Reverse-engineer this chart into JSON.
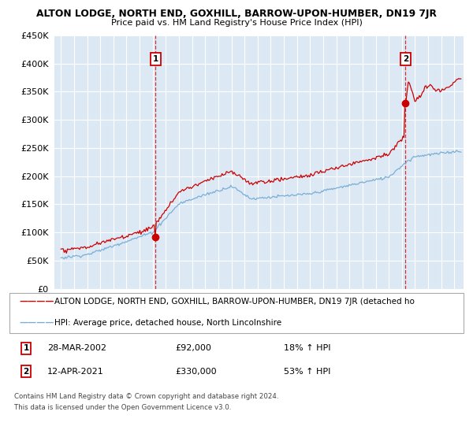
{
  "title": "ALTON LODGE, NORTH END, GOXHILL, BARROW-UPON-HUMBER, DN19 7JR",
  "subtitle": "Price paid vs. HM Land Registry's House Price Index (HPI)",
  "legend_line1": "ALTON LODGE, NORTH END, GOXHILL, BARROW-UPON-HUMBER, DN19 7JR (detached ho",
  "legend_line2": "HPI: Average price, detached house, North Lincolnshire",
  "sale1_date": "28-MAR-2002",
  "sale1_price": 92000,
  "sale1_hpi": "18% ↑ HPI",
  "sale2_date": "12-APR-2021",
  "sale2_price": 330000,
  "sale2_hpi": "53% ↑ HPI",
  "footnote1": "Contains HM Land Registry data © Crown copyright and database right 2024.",
  "footnote2": "This data is licensed under the Open Government Licence v3.0.",
  "ylim": [
    0,
    450000
  ],
  "yticks": [
    0,
    50000,
    100000,
    150000,
    200000,
    250000,
    300000,
    350000,
    400000,
    450000
  ],
  "xlim_start": 1994.5,
  "xlim_end": 2025.7,
  "red_color": "#cc0000",
  "blue_color": "#7aaed6",
  "plot_bg_color": "#dce9f5",
  "background_color": "#ffffff",
  "grid_color": "#ffffff",
  "sale1_x": 2002.22,
  "sale2_x": 2021.28
}
